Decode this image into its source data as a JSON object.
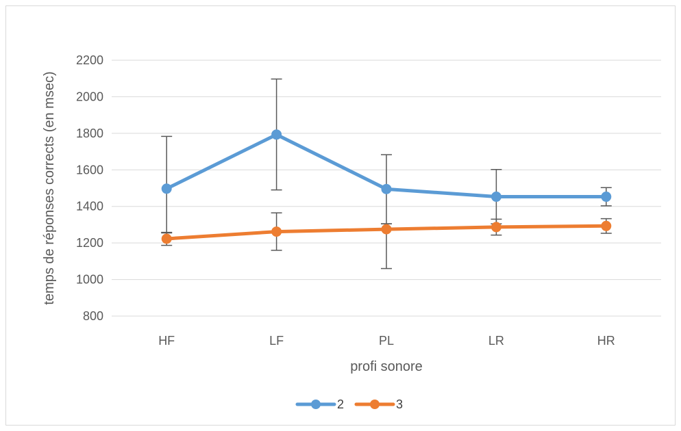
{
  "chart_data": {
    "type": "line",
    "title": "",
    "xlabel": "profi sonore",
    "ylabel": "temps de réponses corrects (en msec)",
    "categories": [
      "HF",
      "LF",
      "PL",
      "LR",
      "HR"
    ],
    "ylim": [
      800,
      2200
    ],
    "yticks": [
      800,
      1000,
      1200,
      1400,
      1600,
      1800,
      2000,
      2200
    ],
    "grid": true,
    "legend_position": "bottom",
    "series": [
      {
        "name": "2",
        "color": "#5B9BD5",
        "values": [
          1497,
          1793,
          1495,
          1453,
          1453
        ],
        "error_low": [
          1255,
          1490,
          1305,
          1305,
          1403
        ],
        "error_high": [
          1783,
          2097,
          1683,
          1602,
          1503
        ]
      },
      {
        "name": "3",
        "color": "#ED7D31",
        "values": [
          1223,
          1262,
          1275,
          1287,
          1293
        ],
        "error_low": [
          1187,
          1160,
          1060,
          1243,
          1253
        ],
        "error_high": [
          1258,
          1365,
          1305,
          1330,
          1333
        ]
      }
    ]
  }
}
